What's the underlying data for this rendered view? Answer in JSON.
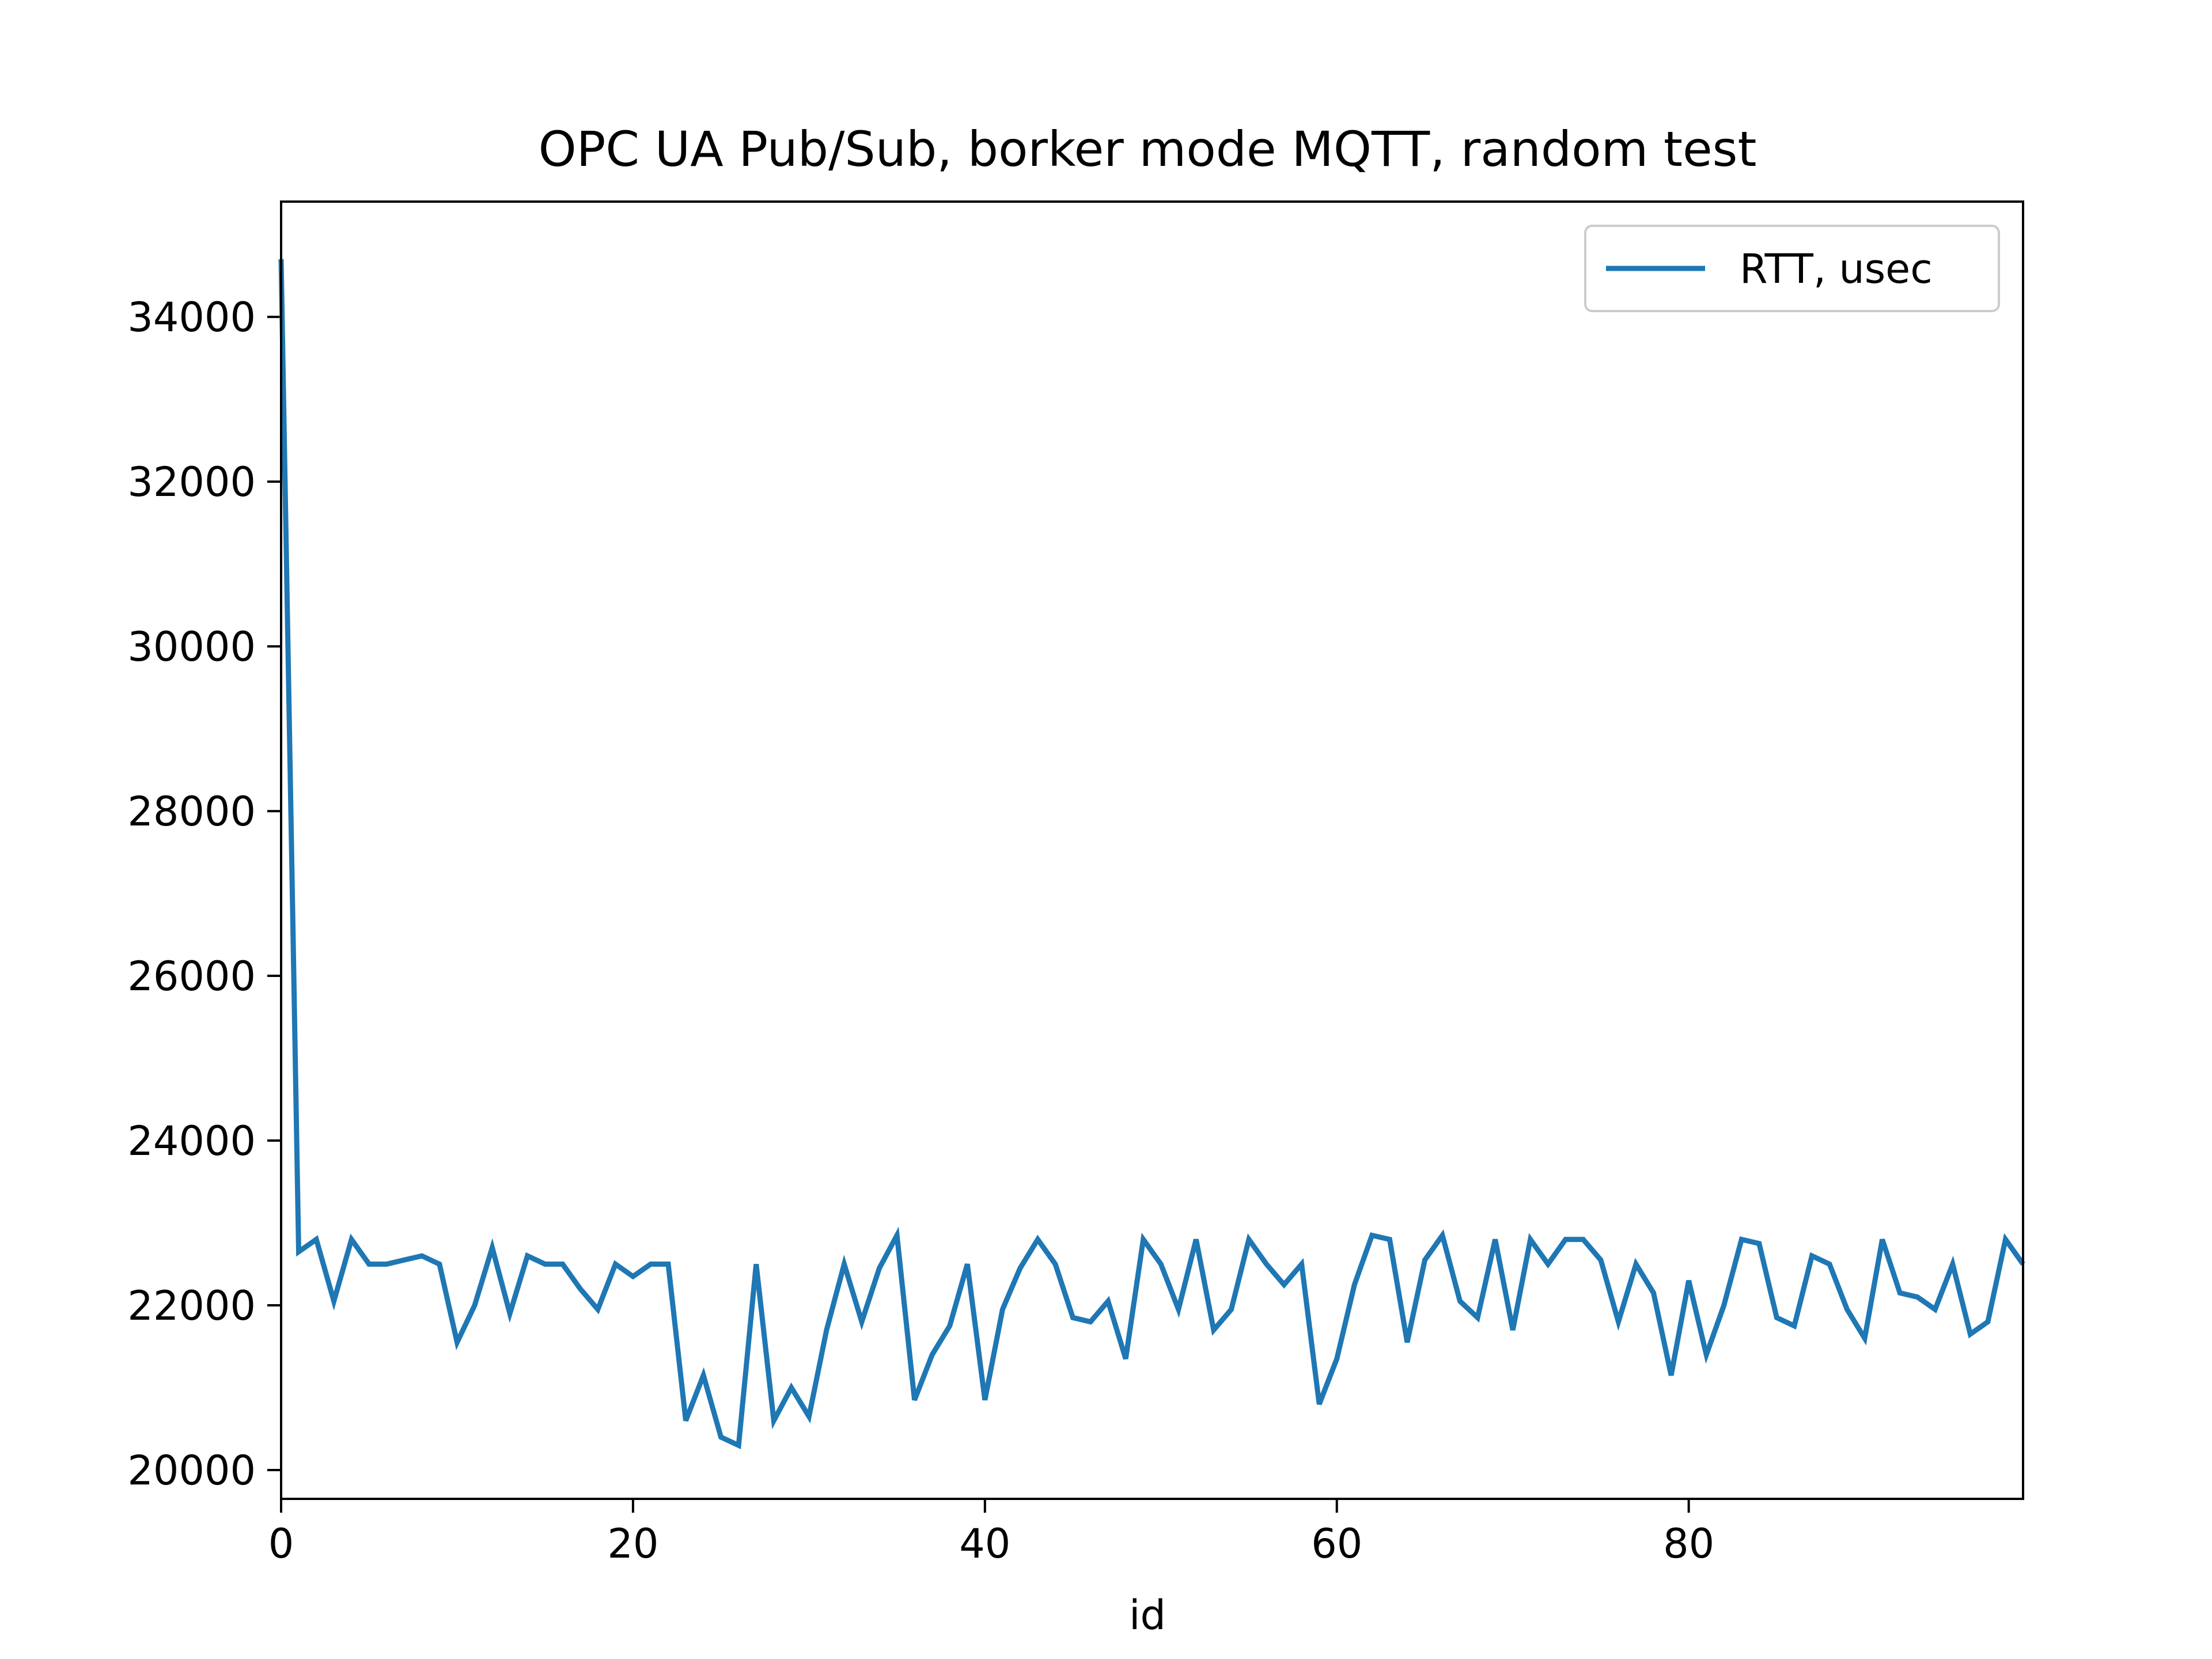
{
  "chart_data": {
    "type": "line",
    "title": "OPC UA Pub/Sub, borker mode MQTT, random test",
    "xlabel": "id",
    "ylabel": "",
    "xlim": [
      0,
      99
    ],
    "ylim": [
      19650,
      35400
    ],
    "xticks": [
      0,
      20,
      40,
      60,
      80
    ],
    "yticks": [
      20000,
      22000,
      24000,
      26000,
      28000,
      30000,
      32000,
      34000
    ],
    "grid": false,
    "legend_position": "top-right",
    "series": [
      {
        "name": "RTT, usec",
        "color": "#1f77b4",
        "x": [
          0,
          1,
          2,
          3,
          4,
          5,
          6,
          7,
          8,
          9,
          10,
          11,
          12,
          13,
          14,
          15,
          16,
          17,
          18,
          19,
          20,
          21,
          22,
          23,
          24,
          25,
          26,
          27,
          28,
          29,
          30,
          31,
          32,
          33,
          34,
          35,
          36,
          37,
          38,
          39,
          40,
          41,
          42,
          43,
          44,
          45,
          46,
          47,
          48,
          49,
          50,
          51,
          52,
          53,
          54,
          55,
          56,
          57,
          58,
          59,
          60,
          61,
          62,
          63,
          64,
          65,
          66,
          67,
          68,
          69,
          70,
          71,
          72,
          73,
          74,
          75,
          76,
          77,
          78,
          79,
          80,
          81,
          82,
          83,
          84,
          85,
          86,
          87,
          88,
          89,
          90,
          91,
          92,
          93,
          94,
          95,
          96,
          97,
          98,
          99
        ],
        "values": [
          34700,
          22650,
          22800,
          22050,
          22800,
          22500,
          22500,
          22550,
          22600,
          22500,
          21550,
          22000,
          22700,
          21900,
          22600,
          22500,
          22500,
          22200,
          21950,
          22500,
          22350,
          22500,
          22500,
          20600,
          21150,
          20400,
          20300,
          22500,
          20600,
          21000,
          20650,
          21700,
          22500,
          21800,
          22450,
          22850,
          20850,
          21400,
          21750,
          22500,
          20850,
          21950,
          22450,
          22800,
          22500,
          21850,
          21800,
          22050,
          21350,
          22800,
          22500,
          21950,
          22800,
          21700,
          21950,
          22800,
          22500,
          22250,
          22500,
          20800,
          21350,
          22250,
          22850,
          22800,
          21550,
          22550,
          22850,
          22050,
          21850,
          22800,
          21700,
          22800,
          22500,
          22800,
          22800,
          22550,
          21800,
          22500,
          22150,
          21150,
          22300,
          21400,
          22000,
          22800,
          22750,
          21850,
          21750,
          22600,
          22500,
          21950,
          21600,
          22800,
          22150,
          22100,
          21950,
          22500,
          21650,
          21800,
          22800,
          22500
        ]
      }
    ]
  }
}
